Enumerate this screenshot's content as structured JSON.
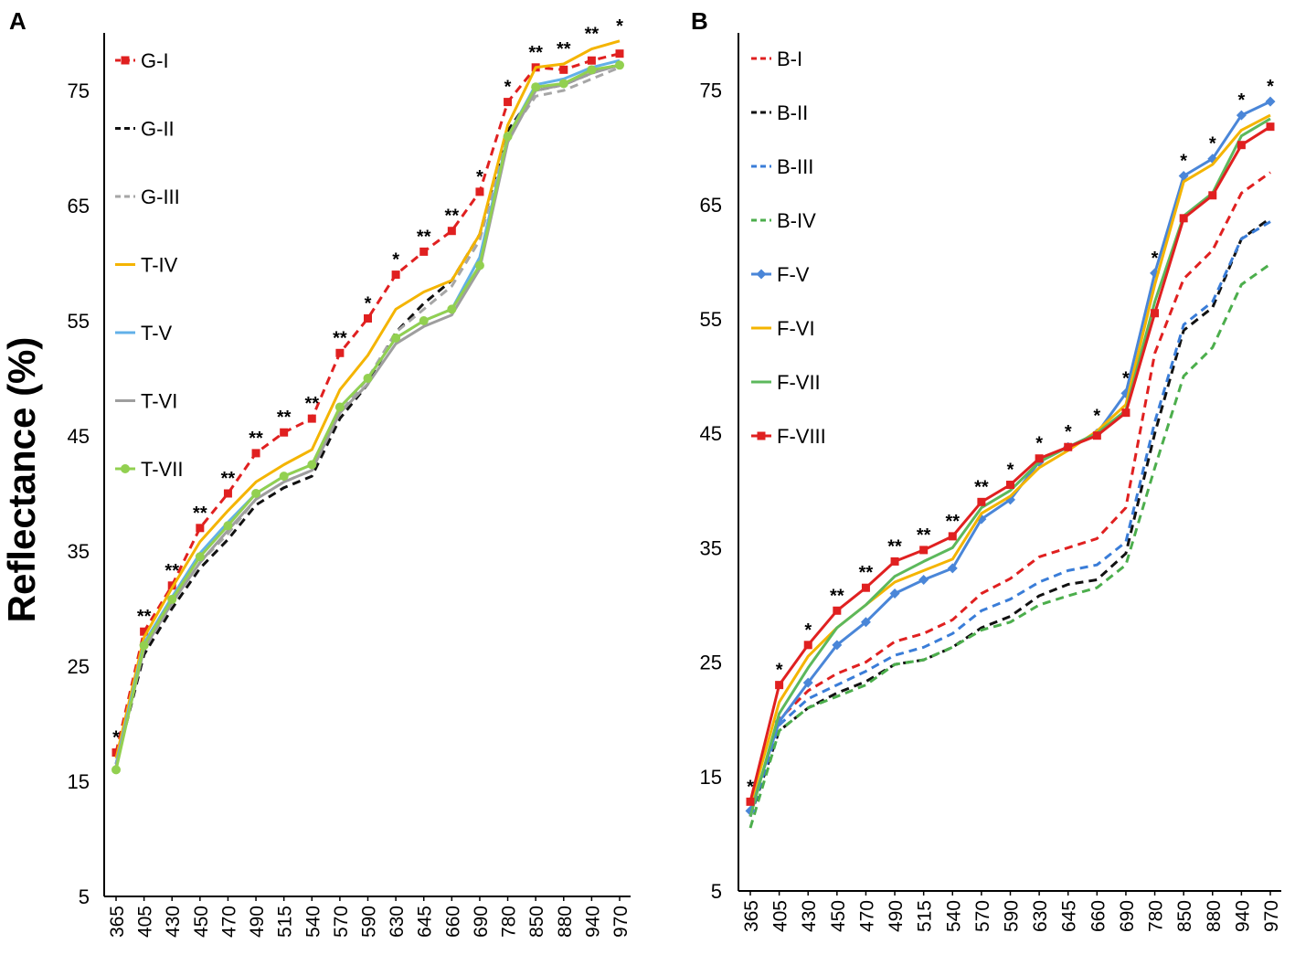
{
  "ylabel": "Reflectance (%)",
  "chart_data": [
    {
      "panel": "A",
      "type": "line",
      "title": "",
      "xlabel": "",
      "ylabel": "Reflectance (%)",
      "x": [
        "365",
        "405",
        "430",
        "450",
        "470",
        "490",
        "515",
        "540",
        "570",
        "590",
        "630",
        "645",
        "660",
        "690",
        "780",
        "850",
        "880",
        "940",
        "970"
      ],
      "ylim": [
        5,
        80
      ],
      "yticks": [
        5,
        15,
        25,
        35,
        45,
        55,
        65,
        75
      ],
      "grid": false,
      "legend": "top-left",
      "series": [
        {
          "name": "G-I",
          "color": "#e02020",
          "dash": "dashed",
          "marker": "square",
          "values": [
            17.5,
            28.0,
            32.0,
            37.0,
            40.0,
            43.5,
            45.3,
            46.5,
            52.2,
            55.2,
            59.0,
            61.0,
            62.8,
            66.2,
            74.0,
            77.0,
            76.8,
            77.6,
            78.2
          ]
        },
        {
          "name": "G-II",
          "color": "#111111",
          "dash": "dashed",
          "marker": "none",
          "values": [
            16.5,
            26.0,
            30.0,
            33.5,
            36.0,
            39.0,
            40.5,
            41.5,
            46.5,
            49.5,
            54.0,
            56.5,
            58.5,
            62.5,
            71.5,
            75.0,
            75.5,
            76.5,
            77.3
          ]
        },
        {
          "name": "G-III",
          "color": "#a6a6a6",
          "dash": "dashed",
          "marker": "none",
          "values": [
            16.5,
            26.5,
            30.5,
            34.0,
            36.5,
            39.5,
            41.0,
            42.0,
            47.0,
            50.0,
            54.0,
            56.0,
            58.0,
            62.0,
            71.0,
            74.5,
            75.0,
            76.0,
            77.0
          ]
        },
        {
          "name": "T-IV",
          "color": "#f4b400",
          "dash": "solid",
          "marker": "none",
          "values": [
            17.0,
            27.5,
            31.8,
            35.8,
            38.5,
            41.0,
            42.5,
            43.8,
            49.0,
            52.0,
            56.0,
            57.5,
            58.5,
            62.5,
            72.0,
            77.0,
            77.3,
            78.6,
            79.3
          ]
        },
        {
          "name": "T-V",
          "color": "#62b0e8",
          "dash": "solid",
          "marker": "none",
          "values": [
            16.5,
            27.0,
            31.0,
            34.8,
            37.5,
            40.0,
            41.5,
            42.5,
            47.5,
            50.0,
            53.5,
            55.0,
            56.0,
            60.5,
            71.0,
            75.5,
            76.0,
            77.0,
            77.6
          ]
        },
        {
          "name": "T-VI",
          "color": "#9e9e9e",
          "dash": "solid",
          "marker": "none",
          "values": [
            16.3,
            26.5,
            30.5,
            34.0,
            36.8,
            39.5,
            41.0,
            42.0,
            47.0,
            49.5,
            53.0,
            54.5,
            55.5,
            59.5,
            70.5,
            75.0,
            75.5,
            76.5,
            77.2
          ]
        },
        {
          "name": "T-VII",
          "color": "#92d050",
          "dash": "solid",
          "marker": "circle",
          "values": [
            16.0,
            26.8,
            30.8,
            34.5,
            37.2,
            40.0,
            41.5,
            42.5,
            47.5,
            50.0,
            53.5,
            55.0,
            56.0,
            59.8,
            71.0,
            75.3,
            75.6,
            76.8,
            77.2
          ]
        }
      ],
      "annotations": [
        "*",
        "**",
        "**",
        "**",
        "**",
        "**",
        "**",
        "**",
        "**",
        "*",
        "*",
        "**",
        "**",
        "*",
        "*",
        "**",
        "**",
        "**",
        "*"
      ]
    },
    {
      "panel": "B",
      "type": "line",
      "title": "",
      "xlabel": "",
      "ylabel": "",
      "x": [
        "365",
        "405",
        "430",
        "450",
        "470",
        "490",
        "515",
        "540",
        "570",
        "590",
        "630",
        "645",
        "660",
        "690",
        "780",
        "850",
        "880",
        "940",
        "970"
      ],
      "ylim": [
        5,
        80
      ],
      "yticks": [
        5,
        15,
        25,
        35,
        45,
        55,
        65,
        75
      ],
      "grid": false,
      "legend": "top-left",
      "series": [
        {
          "name": "B-I",
          "color": "#e02020",
          "dash": "dashed",
          "marker": "none",
          "values": [
            11.5,
            20.0,
            22.5,
            24.0,
            25.0,
            26.8,
            27.5,
            28.7,
            31.0,
            32.3,
            34.2,
            35.0,
            35.8,
            38.5,
            52.0,
            58.5,
            61.0,
            66.0,
            67.8
          ]
        },
        {
          "name": "B-II",
          "color": "#111111",
          "dash": "dashed",
          "marker": "none",
          "values": [
            11.5,
            19.0,
            21.0,
            22.3,
            23.3,
            24.8,
            25.2,
            26.3,
            28.0,
            29.0,
            30.8,
            31.8,
            32.2,
            34.5,
            45.0,
            54.0,
            56.0,
            62.0,
            63.8
          ]
        },
        {
          "name": "B-III",
          "color": "#3a7dd8",
          "dash": "dashed",
          "marker": "none",
          "values": [
            11.5,
            19.5,
            21.8,
            23.0,
            24.2,
            25.6,
            26.3,
            27.5,
            29.5,
            30.5,
            32.0,
            33.0,
            33.5,
            35.5,
            46.0,
            54.5,
            56.5,
            62.0,
            63.5
          ]
        },
        {
          "name": "B-IV",
          "color": "#4cae4c",
          "dash": "dashed",
          "marker": "none",
          "values": [
            10.5,
            19.0,
            21.0,
            22.0,
            23.0,
            24.8,
            25.2,
            26.3,
            27.8,
            28.5,
            30.0,
            30.8,
            31.5,
            33.5,
            42.0,
            50.0,
            52.5,
            58.0,
            59.8
          ]
        },
        {
          "name": "F-V",
          "color": "#4a86d8",
          "dash": "solid",
          "marker": "diamond",
          "values": [
            12.0,
            19.8,
            23.2,
            26.5,
            28.5,
            31.0,
            32.2,
            33.2,
            37.5,
            39.2,
            42.5,
            43.8,
            45.0,
            48.5,
            59.0,
            67.5,
            69.0,
            72.8,
            74.0
          ]
        },
        {
          "name": "F-VI",
          "color": "#f4b400",
          "dash": "solid",
          "marker": "none",
          "values": [
            12.5,
            21.5,
            25.5,
            28.0,
            30.0,
            32.0,
            33.0,
            34.0,
            38.0,
            39.5,
            42.0,
            43.5,
            45.2,
            47.5,
            58.0,
            67.0,
            68.5,
            71.5,
            72.8
          ]
        },
        {
          "name": "F-VII",
          "color": "#5cb85c",
          "dash": "solid",
          "marker": "none",
          "values": [
            11.5,
            20.5,
            24.5,
            28.0,
            30.0,
            32.5,
            33.8,
            35.0,
            38.5,
            40.0,
            42.5,
            43.8,
            45.0,
            47.0,
            56.5,
            64.0,
            66.0,
            71.0,
            72.5
          ]
        },
        {
          "name": "F-VIII",
          "color": "#e02020",
          "dash": "solid",
          "marker": "square",
          "values": [
            12.8,
            23.0,
            26.5,
            29.5,
            31.5,
            33.8,
            34.8,
            36.0,
            39.0,
            40.5,
            42.8,
            43.8,
            44.8,
            46.8,
            55.5,
            63.8,
            65.8,
            70.2,
            71.8
          ]
        }
      ],
      "annotations": [
        "*",
        "*",
        "*",
        "**",
        "**",
        "**",
        "**",
        "**",
        "**",
        "*",
        "*",
        "*",
        "*",
        "*",
        "*",
        "*",
        "*",
        "*",
        "*"
      ]
    }
  ]
}
